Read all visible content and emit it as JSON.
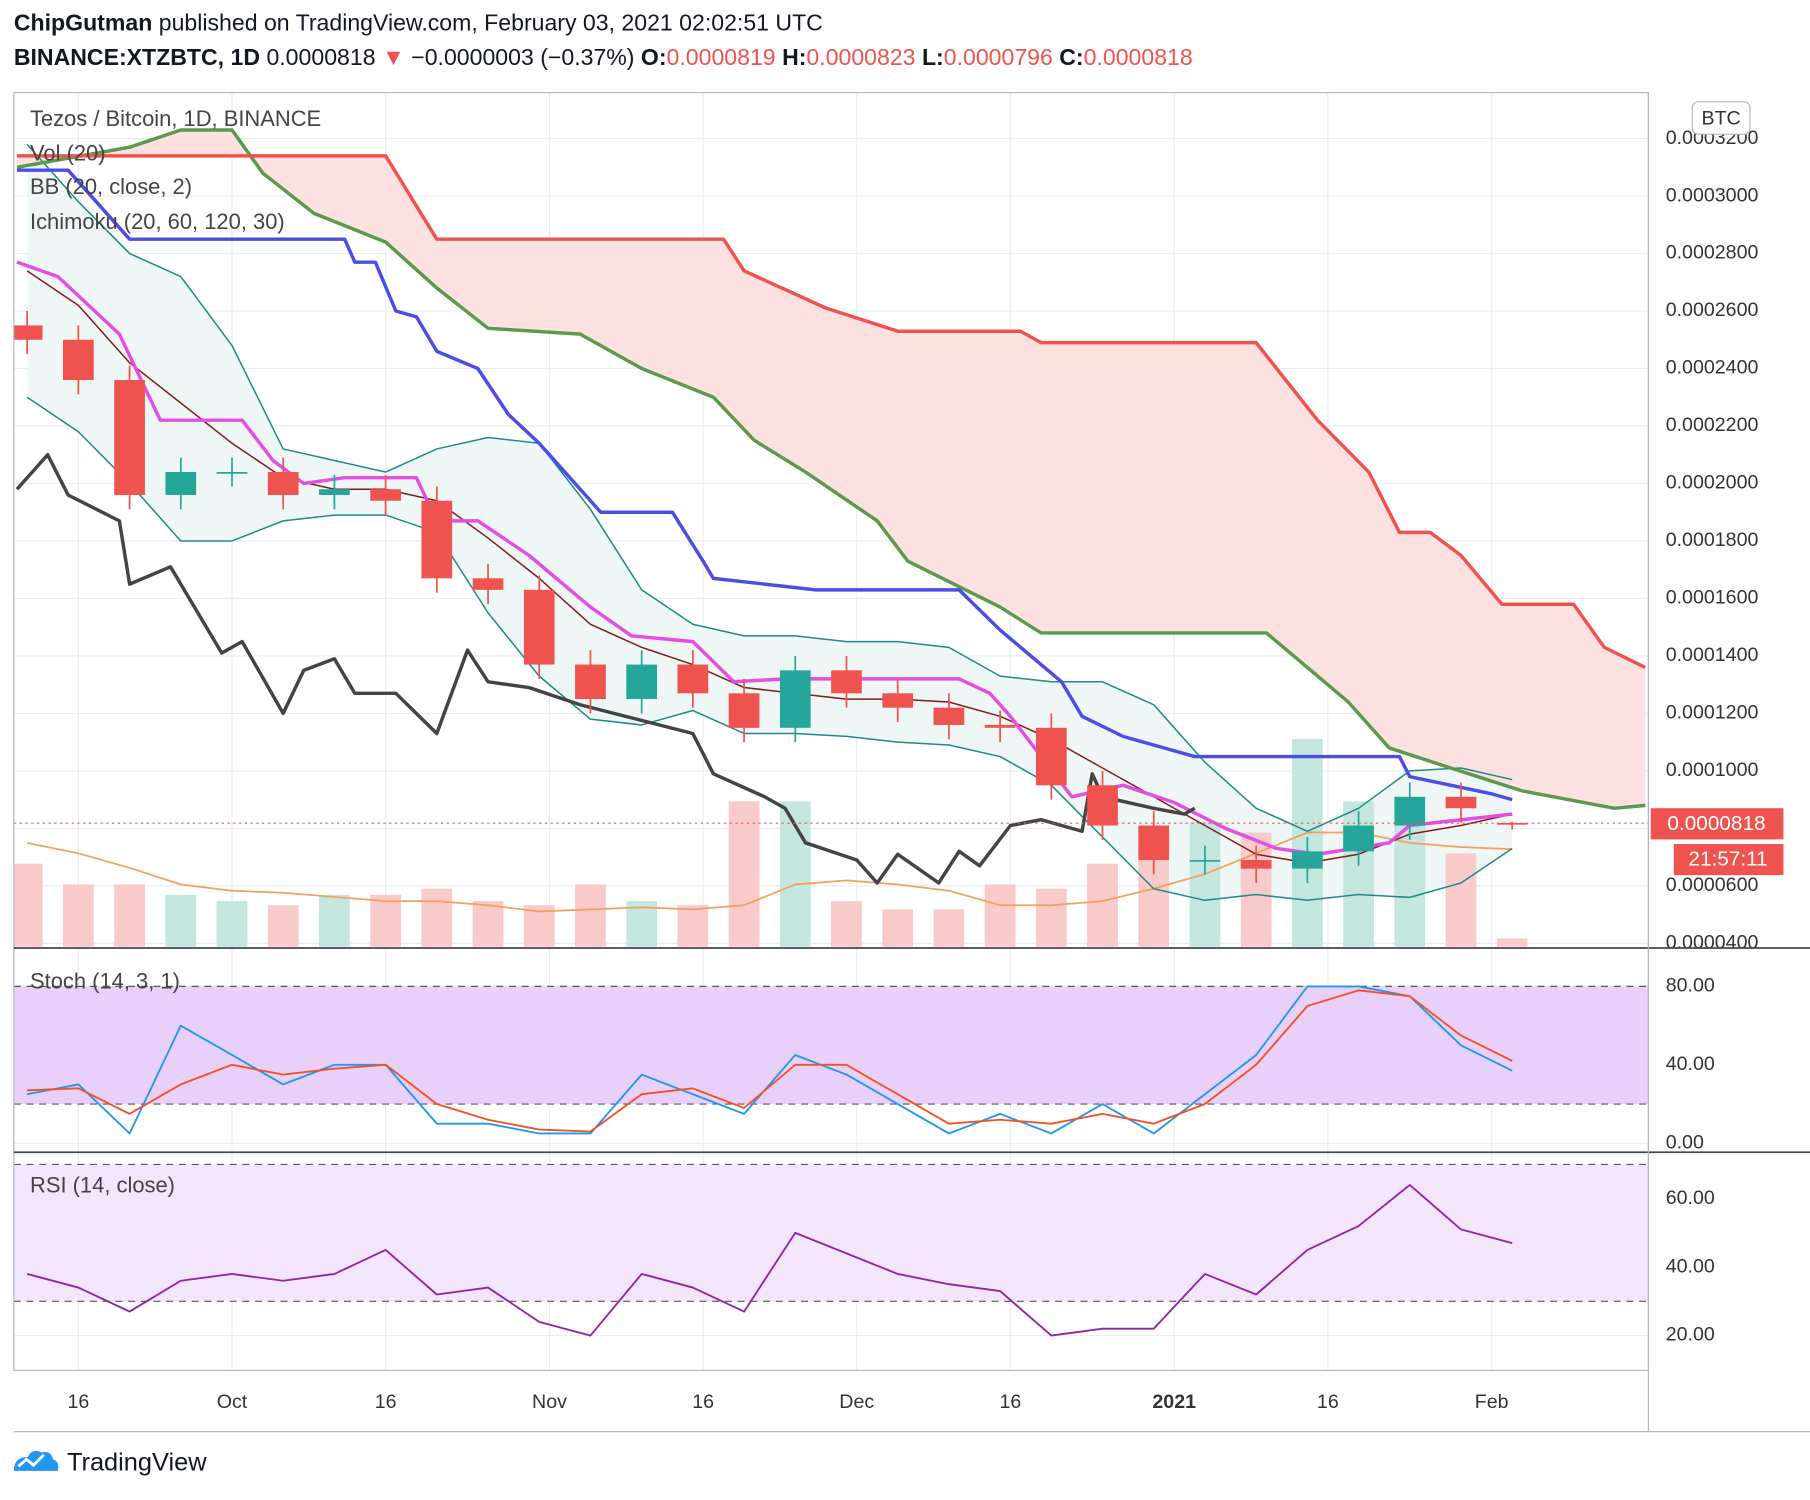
{
  "header": {
    "author": "ChipGutman",
    "published": "published on TradingView.com, February 03, 2021 02:02:51 UTC",
    "symbol": "BINANCE:XTZBTC, 1D",
    "price": "0.0000818",
    "arrow": "▼",
    "change": "−0.0000003 (−0.37%)",
    "ohlc": [
      {
        "key": "O:",
        "value": "0.0000819"
      },
      {
        "key": "H:",
        "value": "0.0000823"
      },
      {
        "key": "L:",
        "value": "0.0000796"
      },
      {
        "key": "C:",
        "value": "0.0000818"
      }
    ]
  },
  "footer": {
    "brand": "TradingView"
  },
  "chart_data": [
    {
      "type": "candlestick",
      "title": "Tezos / Bitcoin, 1D, BINANCE",
      "indicators": [
        "Vol (20)",
        "BB (20, close, 2)",
        "Ichimoku (20, 60, 120, 30)"
      ],
      "currency": "BTC",
      "last_price_label": "0.0000818",
      "countdown": "21:57:11",
      "up_color": "#26a69a",
      "down_color": "#ef5350",
      "volume_up_color": "#c3e6df",
      "volume_down_color": "#f8caca",
      "bb_fill": "#eef7f6",
      "cloud_fill": "#fde0e0",
      "grid": true,
      "xlim": [
        -6.3,
        153.3
      ],
      "xticks": [
        {
          "value": 0,
          "label": "16"
        },
        {
          "value": 15,
          "label": "Oct"
        },
        {
          "value": 30,
          "label": "16"
        },
        {
          "value": 46,
          "label": "Nov"
        },
        {
          "value": 61,
          "label": "16"
        },
        {
          "value": 76,
          "label": "Dec"
        },
        {
          "value": 91,
          "label": "16"
        },
        {
          "value": 107,
          "label": "2021",
          "bold": true
        },
        {
          "value": 122,
          "label": "16"
        },
        {
          "value": 138,
          "label": "Feb"
        }
      ],
      "ylim": [
        3.88e-05,
        0.000336
      ],
      "yticks": [
        {
          "value": 4e-05,
          "label": "0.0000400"
        },
        {
          "value": 6e-05,
          "label": "0.0000600"
        },
        {
          "value": 8e-05,
          "label": "0.0000800"
        },
        {
          "value": 0.0001,
          "label": "0.0001000"
        },
        {
          "value": 0.00012,
          "label": "0.0001200"
        },
        {
          "value": 0.00014,
          "label": "0.0001400"
        },
        {
          "value": 0.00016,
          "label": "0.0001600"
        },
        {
          "value": 0.00018,
          "label": "0.0001800"
        },
        {
          "value": 0.0002,
          "label": "0.0002000"
        },
        {
          "value": 0.00022,
          "label": "0.0002200"
        },
        {
          "value": 0.00024,
          "label": "0.0002400"
        },
        {
          "value": 0.00026,
          "label": "0.0002600"
        },
        {
          "value": 0.00028,
          "label": "0.0002800"
        },
        {
          "value": 0.0003,
          "label": "0.0003000"
        },
        {
          "value": 0.00032,
          "label": "0.0003200"
        }
      ],
      "x": [
        -5,
        0,
        5,
        10,
        15,
        20,
        25,
        30,
        35,
        40,
        45,
        50,
        55,
        60,
        65,
        70,
        75,
        80,
        85,
        90,
        95,
        100,
        105,
        110,
        115,
        120,
        125,
        130,
        135,
        140
      ],
      "open": [
        0.000255,
        0.00025,
        0.000236,
        0.000196,
        0.000204,
        0.000204,
        0.000196,
        0.000198,
        0.000194,
        0.000167,
        0.000163,
        0.000137,
        0.000125,
        0.000137,
        0.000127,
        0.000115,
        0.000135,
        0.000127,
        0.000122,
        0.000116,
        0.000115,
        9.5e-05,
        8.1e-05,
        6.9e-05,
        6.9e-05,
        6.6e-05,
        7.2e-05,
        8.1e-05,
        9.1e-05,
        8.19e-05
      ],
      "high": [
        0.00026,
        0.000255,
        0.000241,
        0.000209,
        0.000209,
        0.000209,
        0.000203,
        0.000203,
        0.000199,
        0.000172,
        0.000168,
        0.000142,
        0.000142,
        0.000142,
        0.000132,
        0.00014,
        0.00014,
        0.000132,
        0.000127,
        0.000121,
        0.00012,
        0.0001,
        8.6e-05,
        7.4e-05,
        7.4e-05,
        7.7e-05,
        8.6e-05,
        9.6e-05,
        9.6e-05,
        8.23e-05
      ],
      "low": [
        0.000245,
        0.000231,
        0.000191,
        0.000191,
        0.000199,
        0.000191,
        0.000191,
        0.000189,
        0.000162,
        0.000158,
        0.000132,
        0.00012,
        0.00012,
        0.000122,
        0.00011,
        0.00011,
        0.000122,
        0.000117,
        0.000111,
        0.00011,
        9e-05,
        7.6e-05,
        6.4e-05,
        6.4e-05,
        6.1e-05,
        6.1e-05,
        6.7e-05,
        7.6e-05,
        8.2e-05,
        7.96e-05
      ],
      "close": [
        0.00025,
        0.000236,
        0.000196,
        0.000204,
        0.000204,
        0.000196,
        0.000198,
        0.000194,
        0.000167,
        0.000163,
        0.000137,
        0.000125,
        0.000137,
        0.000127,
        0.000115,
        0.000135,
        0.000127,
        0.000122,
        0.000116,
        0.000115,
        9.5e-05,
        8.1e-05,
        6.9e-05,
        6.9e-05,
        6.6e-05,
        7.2e-05,
        8.1e-05,
        9.1e-05,
        8.7e-05,
        8.18e-05
      ],
      "volume": [
        40,
        30,
        30,
        25,
        22,
        20,
        25,
        25,
        28,
        22,
        20,
        30,
        22,
        20,
        70,
        70,
        22,
        18,
        18,
        30,
        28,
        40,
        50,
        60,
        55,
        100,
        70,
        60,
        45,
        4
      ],
      "volume_ma": {
        "color": "#f5a05a",
        "values": [
          50,
          45,
          38,
          30,
          27,
          26,
          24,
          22,
          22,
          20,
          17,
          18,
          19,
          18,
          20,
          30,
          32,
          30,
          27,
          20,
          20,
          22,
          28,
          35,
          45,
          55,
          55,
          50,
          48,
          47
        ]
      },
      "series": [
        {
          "color": "#1f8a85",
          "width": 1.3,
          "x": [
            -5,
            0,
            5,
            10,
            15,
            20,
            25,
            30,
            35,
            40,
            45,
            50,
            55,
            60,
            65,
            70,
            75,
            80,
            85,
            90,
            95,
            100,
            105,
            110,
            115,
            120,
            125,
            130,
            135,
            140
          ],
          "values": [
            0.000318,
            0.000298,
            0.00028,
            0.000272,
            0.000248,
            0.000212,
            0.000208,
            0.000204,
            0.000212,
            0.000216,
            0.000214,
            0.000191,
            0.000163,
            0.000151,
            0.000147,
            0.000147,
            0.000145,
            0.000145,
            0.000143,
            0.000133,
            0.000131,
            0.000131,
            0.000123,
            0.000103,
            8.7e-05,
            7.9e-05,
            8.7e-05,
            0.0001,
            0.000101,
            9.7e-05
          ]
        },
        {
          "color": "#1f8a85",
          "width": 1.3,
          "x": [
            -5,
            0,
            5,
            10,
            15,
            20,
            25,
            30,
            35,
            40,
            45,
            50,
            55,
            60,
            65,
            70,
            75,
            80,
            85,
            90,
            95,
            100,
            105,
            110,
            115,
            120,
            125,
            130,
            135,
            140
          ],
          "values": [
            0.00023,
            0.000218,
            0.0002,
            0.00018,
            0.00018,
            0.000187,
            0.000189,
            0.000189,
            0.000183,
            0.000155,
            0.000133,
            0.000118,
            0.000116,
            0.000121,
            0.000113,
            0.000113,
            0.000112,
            0.00011,
            0.000109,
            0.000105,
            9.5e-05,
            7.7e-05,
            5.9e-05,
            5.5e-05,
            5.7e-05,
            5.5e-05,
            5.7e-05,
            5.6e-05,
            6.1e-05,
            7.3e-05
          ]
        },
        {
          "color": "#7f1d1d",
          "width": 1.3,
          "x": [
            -5,
            0,
            5,
            10,
            15,
            20,
            25,
            30,
            35,
            40,
            45,
            50,
            55,
            60,
            65,
            70,
            75,
            80,
            85,
            90,
            95,
            100,
            105,
            110,
            115,
            120,
            125,
            130,
            135,
            140
          ],
          "values": [
            0.000274,
            0.000262,
            0.000242,
            0.000228,
            0.000214,
            0.000202,
            0.000198,
            0.000198,
            0.000194,
            0.000181,
            0.000167,
            0.000151,
            0.000143,
            0.000137,
            0.000129,
            0.000127,
            0.000125,
            0.000125,
            0.000124,
            0.000119,
            0.000111,
            0.000101,
            9.1e-05,
            8.1e-05,
            7.1e-05,
            6.8e-05,
            7.1e-05,
            7.8e-05,
            8.1e-05,
            8.5e-05
          ]
        },
        {
          "color": "#5a9a4c",
          "width": 3,
          "x": [
            -6,
            5,
            10,
            15,
            18,
            23,
            30,
            35,
            40,
            49,
            55,
            62,
            66,
            71,
            78,
            81,
            90,
            94,
            116,
            124,
            128,
            134,
            141,
            150,
            153
          ],
          "values": [
            0.00031,
            0.000317,
            0.000323,
            0.000323,
            0.000308,
            0.000294,
            0.000284,
            0.000268,
            0.000254,
            0.000252,
            0.00024,
            0.00023,
            0.000215,
            0.000204,
            0.000187,
            0.000173,
            0.000157,
            0.000148,
            0.000148,
            0.000124,
            0.000108,
            0.000101,
            9.3e-05,
            8.7e-05,
            8.8e-05
          ]
        },
        {
          "color": "#ef5350",
          "width": 3,
          "x": [
            -6,
            30,
            35,
            63,
            65,
            73,
            80,
            92,
            94,
            115,
            117,
            121,
            126,
            129,
            132,
            135,
            139,
            146,
            149,
            153
          ],
          "values": [
            0.000314,
            0.000314,
            0.000285,
            0.000285,
            0.000274,
            0.000261,
            0.000253,
            0.000253,
            0.000249,
            0.000249,
            0.00024,
            0.000222,
            0.000204,
            0.000183,
            0.000183,
            0.000175,
            0.000158,
            0.000158,
            0.000143,
            0.000136
          ]
        },
        {
          "color": "#4b4de6",
          "width": 3,
          "x": [
            -6,
            -1,
            5,
            26,
            27,
            29,
            31,
            33,
            35,
            39,
            42,
            45,
            51,
            58,
            61,
            62,
            72,
            86,
            90,
            96,
            98,
            102,
            109,
            129,
            130,
            138,
            140
          ],
          "values": [
            0.000309,
            0.000309,
            0.000285,
            0.000285,
            0.000277,
            0.000277,
            0.00026,
            0.000258,
            0.000246,
            0.00024,
            0.000224,
            0.000214,
            0.00019,
            0.00019,
            0.000173,
            0.000167,
            0.000163,
            0.000163,
            0.000149,
            0.000131,
            0.000119,
            0.000112,
            0.000105,
            0.000105,
            9.8e-05,
            9.2e-05,
            9e-05
          ]
        },
        {
          "color": "#e54ee5",
          "width": 3,
          "x": [
            -6,
            -2,
            4,
            8,
            16,
            19,
            22,
            26,
            33,
            35,
            39,
            44,
            50,
            54,
            60,
            64,
            69,
            71,
            86,
            89,
            91,
            97,
            102,
            107,
            112,
            117,
            121,
            128,
            130,
            140
          ],
          "values": [
            0.000277,
            0.000272,
            0.000252,
            0.000222,
            0.000222,
            0.000208,
            0.0002,
            0.000202,
            0.000202,
            0.000187,
            0.000187,
            0.000175,
            0.000157,
            0.000147,
            0.000145,
            0.000131,
            0.000132,
            0.000132,
            0.000132,
            0.000127,
            0.000119,
            9.1e-05,
            9.5e-05,
            8.9e-05,
            8e-05,
            7.3e-05,
            7.1e-05,
            7.5e-05,
            8.1e-05,
            8.5e-05
          ]
        },
        {
          "color": "#444444",
          "width": 3,
          "x": [
            -6,
            -3,
            -1,
            4,
            5,
            9,
            14,
            16,
            20,
            22,
            25,
            27,
            31,
            35,
            38,
            40,
            44,
            49,
            60,
            62,
            67,
            69,
            71,
            76,
            78,
            80,
            84,
            86,
            88,
            91,
            94,
            98,
            99,
            100,
            105,
            108,
            109
          ],
          "values": [
            0.000198,
            0.00021,
            0.000196,
            0.000187,
            0.000165,
            0.000171,
            0.000141,
            0.000145,
            0.00012,
            0.000135,
            0.000139,
            0.000127,
            0.000127,
            0.000113,
            0.000142,
            0.000131,
            0.000129,
            0.000123,
            0.000113,
            9.9e-05,
            9.1e-05,
            8.7e-05,
            7.5e-05,
            6.9e-05,
            6.1e-05,
            7.1e-05,
            6.1e-05,
            7.2e-05,
            6.7e-05,
            8.1e-05,
            8.3e-05,
            7.9e-05,
            9.9e-05,
            9.1e-05,
            8.7e-05,
            8.5e-05,
            8.7e-05
          ]
        }
      ]
    },
    {
      "type": "line",
      "title": "Stoch (14, 3, 1)",
      "band_fill": "#e9d0fb",
      "bands": [
        20,
        80
      ],
      "ylim": [
        -4,
        99
      ],
      "yticks": [
        {
          "value": 0,
          "label": "0.00"
        },
        {
          "value": 40,
          "label": "40.00"
        },
        {
          "value": 80,
          "label": "80.00"
        }
      ],
      "x": [
        -5,
        0,
        5,
        10,
        15,
        20,
        25,
        30,
        35,
        40,
        45,
        50,
        55,
        60,
        65,
        70,
        75,
        80,
        85,
        90,
        95,
        100,
        105,
        110,
        115,
        120,
        125,
        130,
        135,
        140
      ],
      "series": [
        {
          "color": "#2196f3",
          "values": [
            25,
            30,
            5,
            60,
            45,
            30,
            40,
            40,
            10,
            10,
            5,
            5,
            35,
            25,
            15,
            45,
            35,
            20,
            5,
            15,
            5,
            20,
            5,
            25,
            45,
            80,
            80,
            75,
            50,
            37
          ]
        },
        {
          "color": "#f4511e",
          "values": [
            27,
            28,
            15,
            30,
            40,
            35,
            38,
            40,
            20,
            12,
            7,
            6,
            25,
            28,
            18,
            40,
            40,
            25,
            10,
            12,
            10,
            15,
            10,
            20,
            40,
            70,
            78,
            75,
            55,
            42
          ]
        }
      ]
    },
    {
      "type": "line",
      "title": "RSI (14, close)",
      "band_fill": "#f3e5fc",
      "bands": [
        30,
        70
      ],
      "ylim": [
        9.8,
        73.2
      ],
      "yticks": [
        {
          "value": 20,
          "label": "20.00"
        },
        {
          "value": 40,
          "label": "40.00"
        },
        {
          "value": 60,
          "label": "60.00"
        }
      ],
      "x": [
        -5,
        0,
        5,
        10,
        15,
        20,
        25,
        30,
        35,
        40,
        45,
        50,
        55,
        60,
        65,
        70,
        75,
        80,
        85,
        90,
        95,
        100,
        105,
        110,
        115,
        120,
        125,
        130,
        135,
        140
      ],
      "series": [
        {
          "color": "#8e24aa",
          "values": [
            38,
            34,
            27,
            36,
            38,
            36,
            38,
            45,
            32,
            34,
            24,
            20,
            38,
            34,
            27,
            50,
            44,
            38,
            35,
            33,
            20,
            22,
            22,
            38,
            32,
            45,
            52,
            64,
            51,
            47
          ]
        }
      ]
    }
  ]
}
